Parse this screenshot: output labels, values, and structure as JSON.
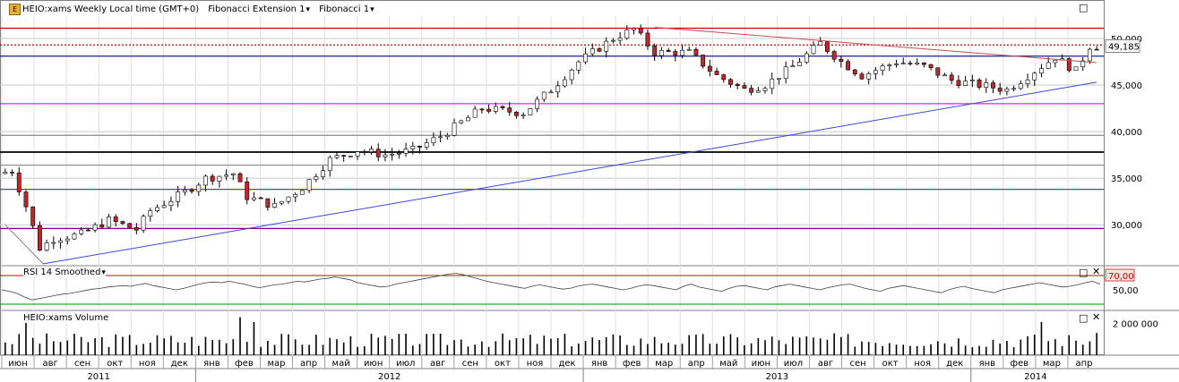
{
  "toolbar": {
    "symbol": "HEIO:xams Weekly Local time (GMT+0)",
    "item2": "Fibonacci Extension 1",
    "item3": "Fibonacci 1"
  },
  "panels": {
    "rsi_title": "RSI 14 Smoothed",
    "rsi_level": "70,00",
    "volume_title": "HEIO:xams Volume",
    "volume_tick": "2 000 000"
  },
  "colors": {
    "up": "#ffffff",
    "down": "#c0262d",
    "grid": "#c8c8c8",
    "fib_red": "#d40000",
    "fib_blue": "#1e1e90",
    "fib_magenta": "#e020e0",
    "fib_green": "#009000",
    "fib_purple": "#800080",
    "trend_blue": "#3a48d8"
  },
  "chart_data": {
    "type": "candlestick",
    "title": "HEIO:xams Weekly",
    "price_axis": {
      "ticks": [
        30000,
        35000,
        40000,
        45000,
        50000
      ],
      "tick_labels": [
        "30,000",
        "35,000",
        "40,000",
        "45,000",
        "50,000"
      ],
      "ylim": [
        25600,
        52400
      ]
    },
    "last_price": 49185,
    "last_price_label": "49,185",
    "fib_levels": [
      {
        "value": 51100,
        "color": "#d40000",
        "style": "solid"
      },
      {
        "value": 49300,
        "color": "#d40000",
        "style": "dotted"
      },
      {
        "value": 48100,
        "color": "#1e1e90",
        "style": "solid"
      },
      {
        "value": 43000,
        "color": "#e020e0",
        "style": "solid"
      },
      {
        "value": 39600,
        "color": "#8a8a8a",
        "style": "solid"
      },
      {
        "value": 37800,
        "color": "#000000",
        "style": "solid"
      },
      {
        "value": 36400,
        "color": "#8a8a8a",
        "style": "solid"
      },
      {
        "value": 33800,
        "color": "#009000",
        "style": "solid"
      },
      {
        "value": 29600,
        "color": "#800080",
        "style": "solid"
      }
    ],
    "trendlines": [
      {
        "from": {
          "week": 0,
          "price": 30000
        },
        "to": {
          "week": 5.5,
          "price": 25800
        },
        "color": "#808080"
      },
      {
        "from": {
          "week": 5.5,
          "price": 25800
        },
        "to": {
          "week": 158,
          "price": 45300
        },
        "color": "#3a48d8"
      },
      {
        "from": {
          "week": 94,
          "price": 51200
        },
        "to": {
          "week": 158,
          "price": 47400
        },
        "color": "#c05050"
      }
    ],
    "months": [
      "июн",
      "авг",
      "сен",
      "окт",
      "ноя",
      "дек",
      "янв",
      "фев",
      "мар",
      "апр",
      "май",
      "июн",
      "июл",
      "авг",
      "сен",
      "окт",
      "ноя",
      "дек",
      "янв",
      "фев",
      "мар",
      "апр",
      "май",
      "июн",
      "июл",
      "авг",
      "сен",
      "окт",
      "ноя",
      "дек",
      "янв",
      "фев",
      "мар",
      "апр"
    ],
    "years": [
      "2011",
      "2012",
      "2013",
      "2014"
    ],
    "rsi": {
      "level": 70,
      "values": [
        50,
        48,
        45,
        40,
        36,
        38,
        40,
        42,
        44,
        45,
        47,
        49,
        51,
        52,
        54,
        55,
        56,
        55,
        57,
        59,
        56,
        54,
        52,
        50,
        52,
        55,
        58,
        60,
        61,
        60,
        62,
        60,
        58,
        55,
        53,
        55,
        57,
        58,
        60,
        62,
        61,
        63,
        65,
        66,
        68,
        66,
        64,
        60,
        58,
        56,
        54,
        55,
        58,
        60,
        62,
        64,
        66,
        68,
        70,
        72,
        73,
        71,
        68,
        65,
        62,
        60,
        58,
        56,
        54,
        52,
        55,
        57,
        55,
        53,
        51,
        52,
        55,
        57,
        58,
        56,
        54,
        52,
        50,
        52,
        55,
        57,
        56,
        54,
        52,
        50,
        55,
        58,
        54,
        52,
        50,
        48,
        52,
        55,
        56,
        54,
        52,
        50,
        54,
        56,
        58,
        56,
        54,
        52,
        50,
        53,
        55,
        57,
        58,
        55,
        52,
        50,
        48,
        52,
        54,
        56,
        54,
        52,
        50,
        48,
        46,
        50,
        53,
        55,
        52,
        50,
        48,
        46,
        50,
        52,
        54,
        56,
        58,
        60,
        58,
        56,
        54,
        55,
        57,
        60,
        62,
        58
      ]
    },
    "volume": {
      "tick": 2000000
    }
  }
}
